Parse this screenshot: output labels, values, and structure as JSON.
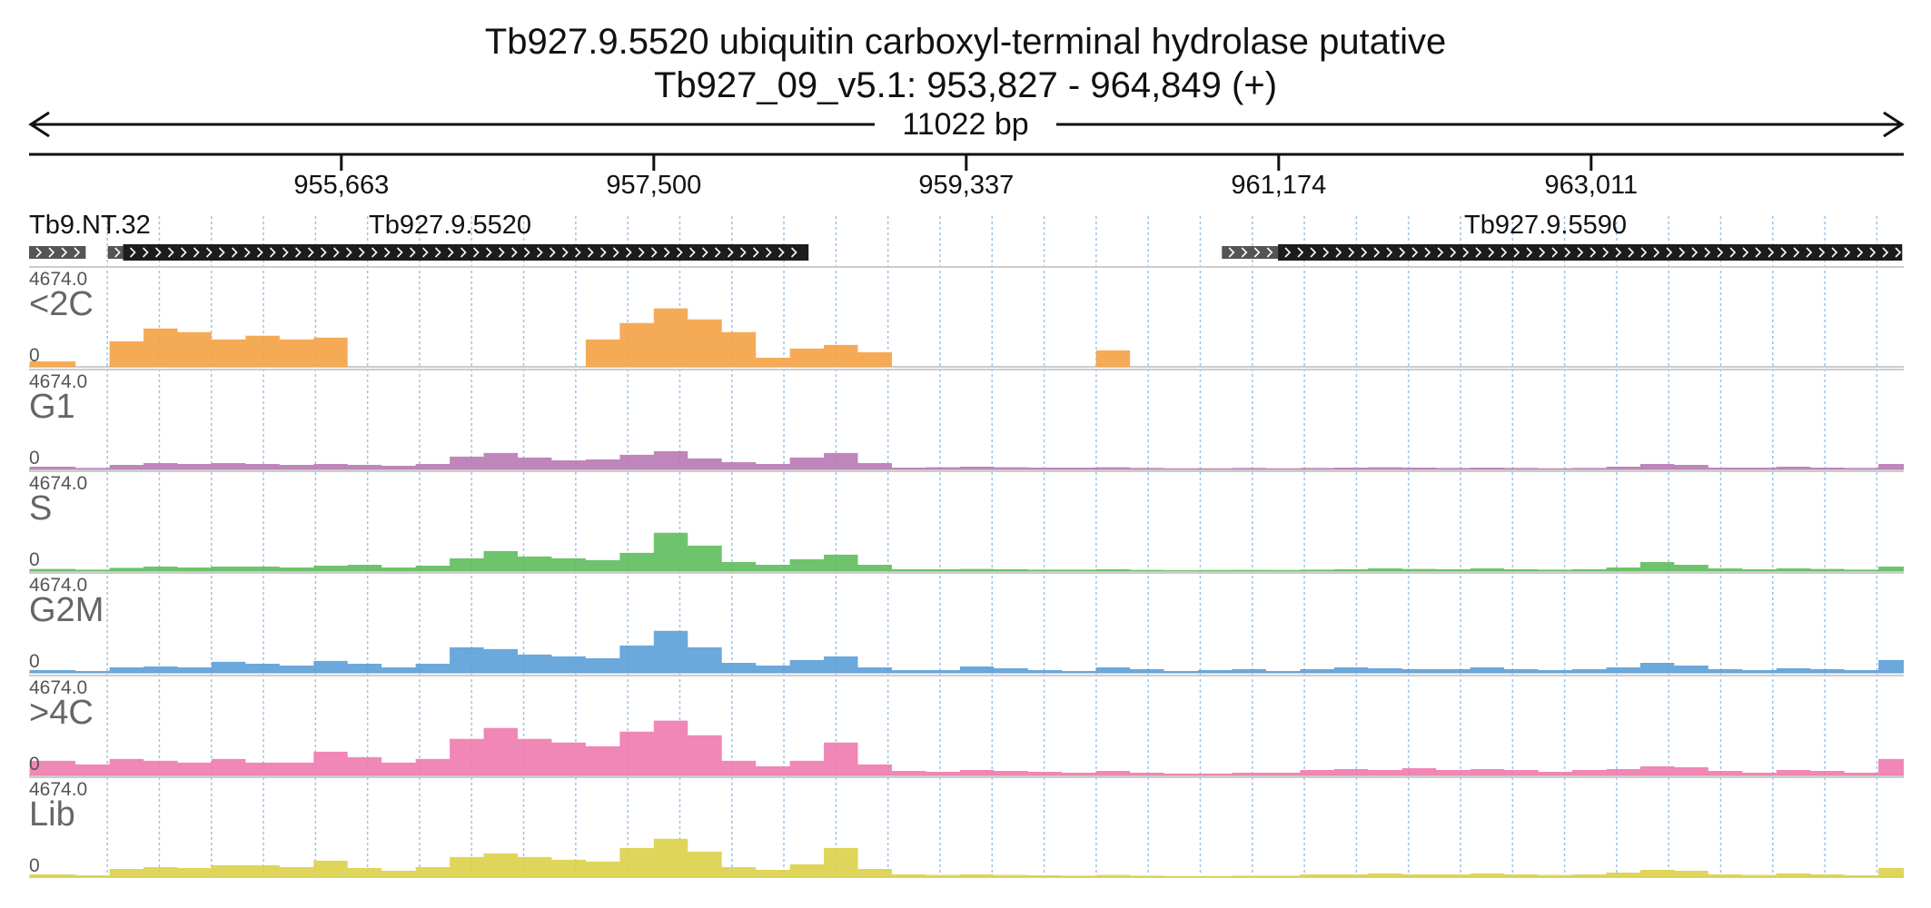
{
  "title": {
    "line1": "Tb927.9.5520  ubiquitin carboxyl-terminal hydrolase  putative",
    "line2": "Tb927_09_v5.1: 953,827 - 964,849 (+)"
  },
  "span": {
    "label": "11022 bp"
  },
  "ruler": {
    "start": 953827,
    "end": 964849,
    "ticks": [
      {
        "pos": 955663,
        "label": "955,663"
      },
      {
        "pos": 957500,
        "label": "957,500"
      },
      {
        "pos": 959337,
        "label": "959,337"
      },
      {
        "pos": 961174,
        "label": "961,174"
      },
      {
        "pos": 963011,
        "label": "963,011"
      }
    ]
  },
  "genes": [
    {
      "name": "Tb9.NT.32",
      "label": "Tb9.NT.32",
      "utr_start": 953827,
      "utr_end": 954160,
      "cds_start": null,
      "cds_end": null
    },
    {
      "name": "Tb927.9.5520",
      "label": "Tb927.9.5520",
      "utr_start": 954290,
      "utr_end": 954380,
      "cds_start": 954380,
      "cds_end": 958410
    },
    {
      "name": "Tb927.9.5590",
      "label": "Tb927.9.5590",
      "utr_start": 960840,
      "utr_end": 961170,
      "cds_start": 961170,
      "cds_end": 964840
    }
  ],
  "tracks": [
    {
      "name": "<2C",
      "max_label": "4674.0",
      "zero_label": "0",
      "color": "#f4a244"
    },
    {
      "name": "G1",
      "max_label": "4674.0",
      "zero_label": "0",
      "color": "#b879b5"
    },
    {
      "name": "S",
      "max_label": "4674.0",
      "zero_label": "0",
      "color": "#5ebc5c"
    },
    {
      "name": "G2M",
      "max_label": "4674.0",
      "zero_label": "0",
      "color": "#5b9fd8"
    },
    {
      "name": ">4C",
      "max_label": "4674.0",
      "zero_label": "0",
      "color": "#f07aae"
    },
    {
      "name": "Lib",
      "max_label": "4674.0",
      "zero_label": "0",
      "color": "#dcd048"
    }
  ],
  "chart_data": {
    "type": "area",
    "xlim": [
      953827,
      964849
    ],
    "ylim": [
      0,
      4674.0
    ],
    "x": [
      953830,
      954100,
      954300,
      954500,
      954700,
      954900,
      955100,
      955300,
      955500,
      955700,
      955900,
      956100,
      956300,
      956500,
      956700,
      956900,
      957100,
      957300,
      957500,
      957700,
      957900,
      958100,
      958300,
      958500,
      958700,
      958900,
      959100,
      959300,
      959500,
      959700,
      959900,
      960100,
      960300,
      960500,
      960700,
      960900,
      961100,
      961300,
      961500,
      961700,
      961900,
      962100,
      962300,
      962500,
      962700,
      962900,
      963100,
      963300,
      963500,
      963700,
      963900,
      964100,
      964300,
      964500,
      964700,
      964849
    ],
    "series": [
      {
        "name": "<2C",
        "values": [
          300,
          0,
          1400,
          2100,
          1900,
          1500,
          1700,
          1500,
          1600,
          0,
          0,
          0,
          0,
          0,
          0,
          0,
          1500,
          2400,
          3200,
          2600,
          1900,
          500,
          1000,
          1200,
          800,
          0,
          0,
          0,
          0,
          0,
          0,
          900,
          0,
          0,
          0,
          0,
          0,
          0,
          0,
          0,
          0,
          0,
          0,
          0,
          0,
          0,
          0,
          0,
          0,
          0,
          0,
          0,
          0,
          0,
          0,
          0
        ]
      },
      {
        "name": "G1",
        "values": [
          150,
          80,
          250,
          350,
          300,
          350,
          300,
          250,
          300,
          250,
          200,
          300,
          700,
          900,
          650,
          500,
          550,
          800,
          1000,
          600,
          400,
          300,
          650,
          900,
          350,
          100,
          120,
          150,
          120,
          100,
          100,
          120,
          80,
          60,
          60,
          80,
          60,
          80,
          100,
          120,
          100,
          80,
          100,
          80,
          60,
          80,
          150,
          300,
          250,
          100,
          100,
          150,
          100,
          80,
          300,
          150
        ]
      },
      {
        "name": "S",
        "values": [
          120,
          80,
          180,
          250,
          200,
          250,
          250,
          200,
          300,
          350,
          200,
          300,
          700,
          1100,
          800,
          700,
          600,
          1000,
          2100,
          1400,
          500,
          350,
          650,
          900,
          350,
          100,
          100,
          120,
          100,
          80,
          80,
          100,
          70,
          50,
          60,
          70,
          60,
          80,
          100,
          150,
          120,
          100,
          150,
          100,
          80,
          100,
          200,
          500,
          350,
          150,
          100,
          150,
          120,
          80,
          250,
          200
        ]
      },
      {
        "name": "G2M",
        "values": [
          150,
          100,
          300,
          350,
          300,
          600,
          500,
          400,
          650,
          500,
          300,
          500,
          1400,
          1300,
          1000,
          900,
          800,
          1500,
          2300,
          1400,
          550,
          400,
          700,
          900,
          300,
          150,
          150,
          350,
          250,
          150,
          100,
          300,
          200,
          100,
          150,
          200,
          100,
          200,
          300,
          250,
          200,
          200,
          300,
          200,
          150,
          200,
          300,
          550,
          400,
          200,
          150,
          250,
          200,
          150,
          700,
          300
        ]
      },
      {
        "name": ">4C",
        "values": [
          800,
          600,
          900,
          800,
          700,
          900,
          700,
          700,
          1300,
          1000,
          700,
          900,
          2000,
          2600,
          2000,
          1800,
          1600,
          2400,
          3000,
          2200,
          800,
          500,
          800,
          1800,
          600,
          250,
          200,
          300,
          250,
          200,
          150,
          250,
          150,
          100,
          100,
          150,
          150,
          300,
          350,
          300,
          400,
          300,
          350,
          300,
          200,
          300,
          350,
          500,
          450,
          250,
          150,
          300,
          250,
          150,
          900,
          500
        ]
      },
      {
        "name": "Lib",
        "values": [
          150,
          100,
          450,
          550,
          500,
          650,
          650,
          550,
          900,
          500,
          350,
          550,
          1100,
          1300,
          1100,
          950,
          850,
          1600,
          2100,
          1400,
          550,
          400,
          700,
          1600,
          450,
          150,
          120,
          150,
          120,
          100,
          80,
          120,
          80,
          60,
          60,
          80,
          80,
          150,
          150,
          200,
          150,
          150,
          200,
          150,
          120,
          150,
          250,
          400,
          350,
          150,
          120,
          200,
          150,
          100,
          500,
          400
        ]
      }
    ]
  }
}
